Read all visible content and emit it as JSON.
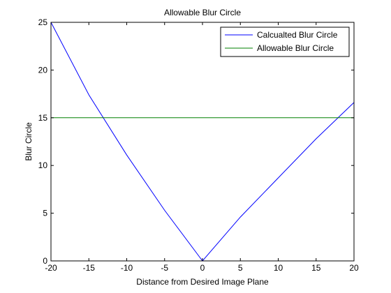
{
  "figure_background": "#ffffff",
  "chart_data": {
    "type": "line",
    "title": "Allowable Blur Circle",
    "xlabel": "Distance from Desired Image Plane",
    "ylabel": "Blur Circle",
    "xlim": [
      -20,
      20
    ],
    "ylim": [
      0,
      25
    ],
    "xticks": [
      -20,
      -15,
      -10,
      -5,
      0,
      5,
      10,
      15,
      20
    ],
    "yticks": [
      0,
      5,
      10,
      15,
      20,
      25
    ],
    "grid": false,
    "legend_position": "top-right",
    "series": [
      {
        "name": "Calcualted Blur Circle",
        "color": "#0000ff",
        "x": [
          -20,
          -15,
          -10,
          -5,
          0,
          5,
          10,
          15,
          20
        ],
        "y": [
          25,
          17.4,
          11.1,
          5.3,
          0,
          4.6,
          8.7,
          12.8,
          16.6
        ]
      },
      {
        "name": "Allowable Blur Circle",
        "color": "#008000",
        "x": [
          -20,
          20
        ],
        "y": [
          15,
          15
        ]
      }
    ]
  }
}
